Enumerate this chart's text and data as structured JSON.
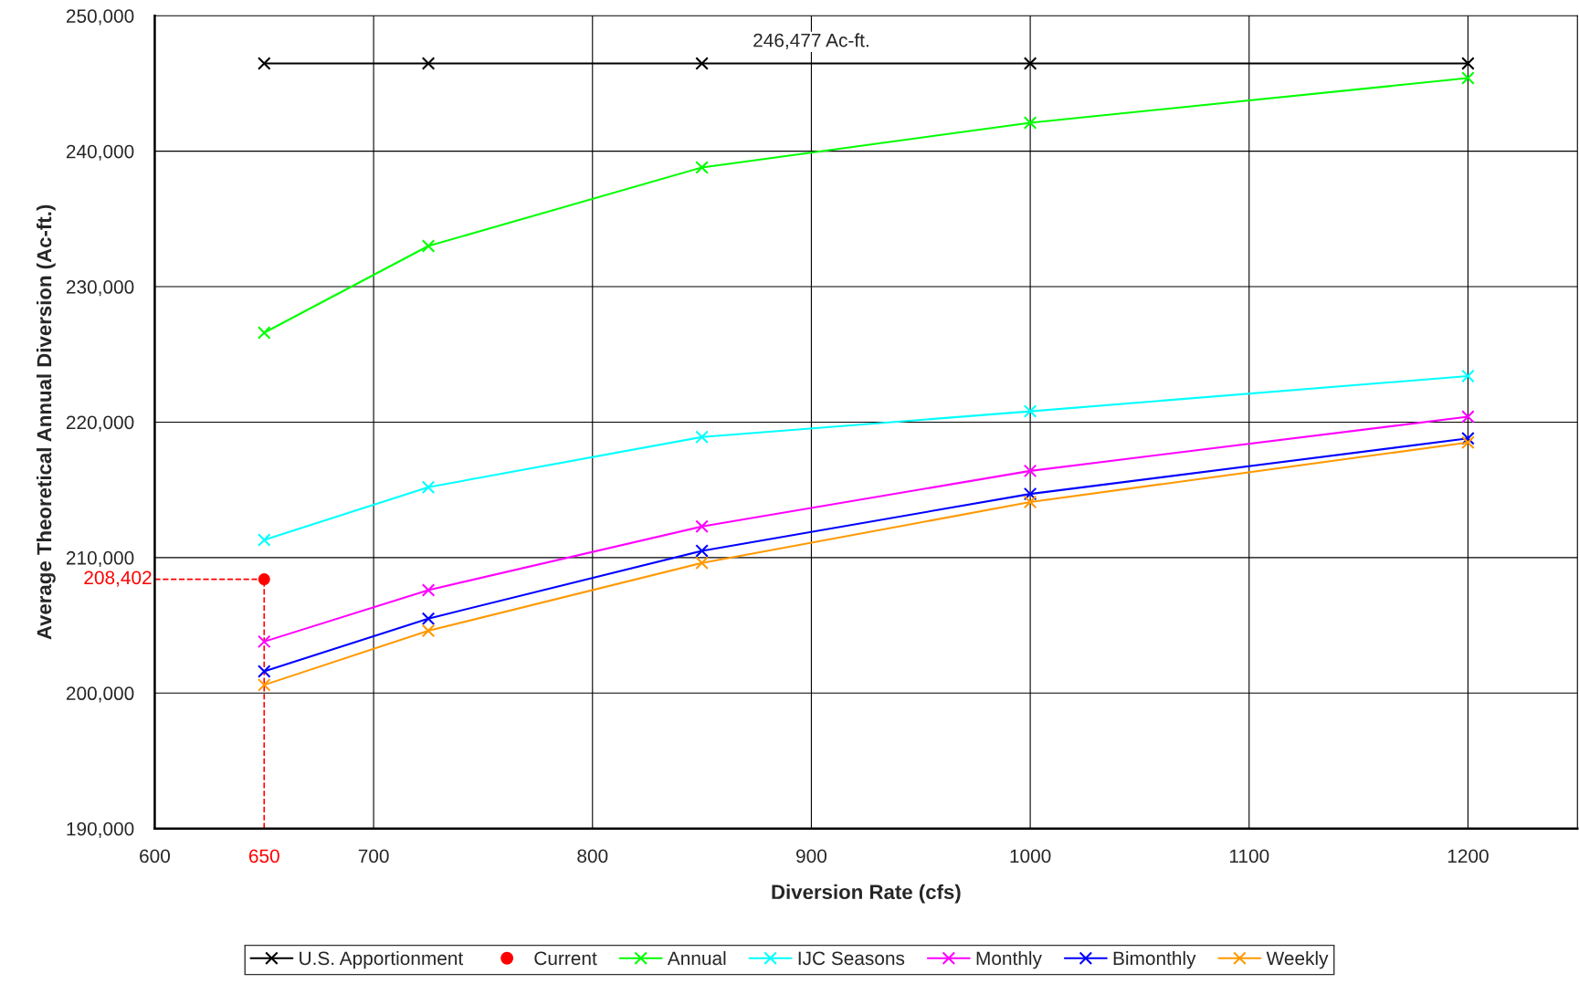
{
  "chart_data": {
    "type": "line",
    "xlabel": "Diversion Rate (cfs)",
    "ylabel": "Average Theoretical Annual Diversion (Ac-ft.)",
    "x": [
      650,
      725,
      850,
      1000,
      1200
    ],
    "series": [
      {
        "name": "U.S. Apportionment",
        "color": "#000000",
        "values": [
          246477,
          246477,
          246477,
          246477,
          246477
        ]
      },
      {
        "name": "Current",
        "type": "scatter",
        "marker": "circle",
        "color": "#ff0000",
        "x": [
          650
        ],
        "values": [
          208402
        ]
      },
      {
        "name": "Annual",
        "color": "#00ff00",
        "values": [
          226600,
          233000,
          238800,
          242100,
          245400
        ]
      },
      {
        "name": "IJC Seasons",
        "color": "#00ffff",
        "values": [
          211300,
          215200,
          218900,
          220800,
          223400
        ]
      },
      {
        "name": "Monthly",
        "color": "#ff00ff",
        "values": [
          203800,
          207600,
          212300,
          216400,
          220400
        ]
      },
      {
        "name": "Bimonthly",
        "color": "#0000ff",
        "values": [
          201600,
          205500,
          210500,
          214700,
          218800
        ]
      },
      {
        "name": "Weekly",
        "color": "#ff9900",
        "values": [
          200600,
          204600,
          209600,
          214100,
          218500
        ]
      }
    ],
    "annotations": [
      {
        "text": "246,477 Ac-ft.",
        "x": 900,
        "y": 246477
      }
    ],
    "ref_lines": [
      {
        "axis": "x",
        "value": 650,
        "label": "650",
        "color": "#ff0000",
        "line_style": "dashed"
      },
      {
        "axis": "y",
        "value": 208402,
        "label": "208,402",
        "color": "#ff0000",
        "line_style": "dashed"
      }
    ],
    "xlim": [
      600,
      1250
    ],
    "xticks": [
      600,
      700,
      800,
      900,
      1000,
      1100,
      1200
    ],
    "ylim": [
      190000,
      250000
    ],
    "yticks": [
      {
        "value": 190000,
        "label": "190,000"
      },
      {
        "value": 200000,
        "label": "200,000"
      },
      {
        "value": 210000,
        "label": "210,000"
      },
      {
        "value": 220000,
        "label": "220,000"
      },
      {
        "value": 230000,
        "label": "230,000"
      },
      {
        "value": 240000,
        "label": "240,000"
      },
      {
        "value": 250000,
        "label": "250,000"
      }
    ],
    "grid": true,
    "legend": "bottom",
    "marker": "cross",
    "line_style": "solid"
  }
}
